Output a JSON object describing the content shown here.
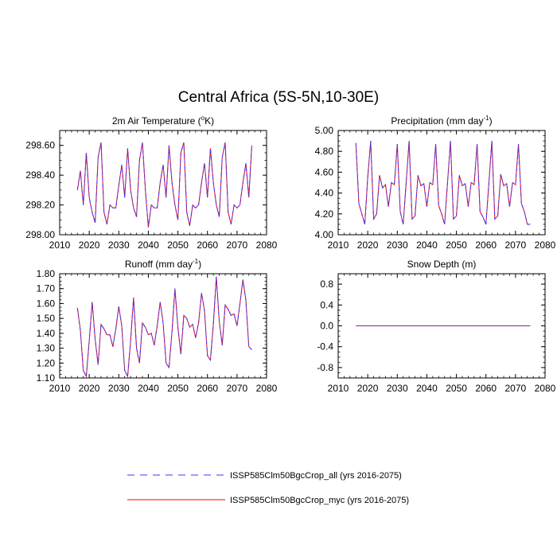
{
  "title": "Central Africa (5S-5N,10-30E)",
  "colors": {
    "series_all": "#3a3aff",
    "series_myc": "#ff0000",
    "axis": "#000000"
  },
  "legend": [
    {
      "label": "ISSP585Clm50BgcCrop_all (yrs 2016-2075)",
      "color": "#3a3aff",
      "style": "dashed"
    },
    {
      "label": "ISSP585Clm50BgcCrop_myc (yrs 2016-2075)",
      "color": "#ff0000",
      "style": "solid"
    }
  ],
  "chart_data": [
    {
      "type": "line",
      "title_main": "2m Air Temperature (",
      "title_sup": "o",
      "title_rest": "K)",
      "x": [
        2016,
        2017,
        2018,
        2019,
        2020,
        2021,
        2022,
        2023,
        2024,
        2025,
        2026,
        2027,
        2028,
        2029,
        2030,
        2031,
        2032,
        2033,
        2034,
        2035,
        2036,
        2037,
        2038,
        2039,
        2040,
        2041,
        2042,
        2043,
        2044,
        2045,
        2046,
        2047,
        2048,
        2049,
        2050,
        2051,
        2052,
        2053,
        2054,
        2055,
        2056,
        2057,
        2058,
        2059,
        2060,
        2061,
        2062,
        2063,
        2064,
        2065,
        2066,
        2067,
        2068,
        2069,
        2070,
        2071,
        2072,
        2073,
        2074,
        2075
      ],
      "series": [
        {
          "name": "ISSP585Clm50BgcCrop_all (yrs 2016-2075)",
          "values": [
            298.3,
            298.43,
            298.2,
            298.55,
            298.25,
            298.15,
            298.08,
            298.52,
            298.62,
            298.15,
            298.07,
            298.2,
            298.18,
            298.18,
            298.33,
            298.47,
            298.25,
            298.58,
            298.3,
            298.18,
            298.12,
            298.5,
            298.62,
            298.3,
            298.05,
            298.2,
            298.18,
            298.18,
            298.35,
            298.47,
            298.25,
            298.6,
            298.35,
            298.2,
            298.1,
            298.55,
            298.62,
            298.15,
            298.06,
            298.2,
            298.18,
            298.2,
            298.35,
            298.48,
            298.25,
            298.58,
            298.35,
            298.2,
            298.12,
            298.52,
            298.62,
            298.15,
            298.07,
            298.2,
            298.18,
            298.2,
            298.35,
            298.48,
            298.25,
            298.6
          ]
        },
        {
          "name": "ISSP585Clm50BgcCrop_myc (yrs 2016-2075)",
          "values": [
            298.3,
            298.43,
            298.2,
            298.55,
            298.25,
            298.15,
            298.08,
            298.52,
            298.62,
            298.15,
            298.07,
            298.2,
            298.18,
            298.18,
            298.33,
            298.47,
            298.25,
            298.58,
            298.3,
            298.18,
            298.12,
            298.5,
            298.62,
            298.3,
            298.05,
            298.2,
            298.18,
            298.18,
            298.35,
            298.47,
            298.25,
            298.6,
            298.35,
            298.2,
            298.1,
            298.55,
            298.62,
            298.15,
            298.06,
            298.2,
            298.18,
            298.2,
            298.35,
            298.48,
            298.25,
            298.58,
            298.35,
            298.2,
            298.12,
            298.52,
            298.62,
            298.15,
            298.07,
            298.2,
            298.18,
            298.2,
            298.35,
            298.48,
            298.25,
            298.6
          ]
        }
      ],
      "xlim": [
        2010,
        2080
      ],
      "ylim": [
        298.0,
        298.7
      ],
      "xticks": [
        "2010",
        "2020",
        "2030",
        "2040",
        "2050",
        "2060",
        "2070",
        "2080"
      ],
      "yticks": [
        "298.00",
        "298.20",
        "298.40",
        "298.60"
      ]
    },
    {
      "type": "line",
      "title_main": "Precipitation (mm day",
      "title_sup": "-1",
      "title_rest": ")",
      "x": [
        2016,
        2017,
        2018,
        2019,
        2020,
        2021,
        2022,
        2023,
        2024,
        2025,
        2026,
        2027,
        2028,
        2029,
        2030,
        2031,
        2032,
        2033,
        2034,
        2035,
        2036,
        2037,
        2038,
        2039,
        2040,
        2041,
        2042,
        2043,
        2044,
        2045,
        2046,
        2047,
        2048,
        2049,
        2050,
        2051,
        2052,
        2053,
        2054,
        2055,
        2056,
        2057,
        2058,
        2059,
        2060,
        2061,
        2062,
        2063,
        2064,
        2065,
        2066,
        2067,
        2068,
        2069,
        2070,
        2071,
        2072,
        2073,
        2074,
        2075
      ],
      "series": [
        {
          "name": "ISSP585Clm50BgcCrop_all (yrs 2016-2075)",
          "values": [
            4.88,
            4.3,
            4.2,
            4.1,
            4.55,
            4.9,
            4.15,
            4.2,
            4.57,
            4.45,
            4.48,
            4.27,
            4.5,
            4.48,
            4.87,
            4.22,
            4.1,
            4.5,
            4.9,
            4.15,
            4.18,
            4.57,
            4.47,
            4.49,
            4.27,
            4.5,
            4.48,
            4.87,
            4.28,
            4.2,
            4.1,
            4.5,
            4.9,
            4.15,
            4.18,
            4.57,
            4.47,
            4.49,
            4.27,
            4.5,
            4.48,
            4.87,
            4.22,
            4.17,
            4.1,
            4.5,
            4.9,
            4.15,
            4.18,
            4.58,
            4.47,
            4.49,
            4.27,
            4.5,
            4.48,
            4.87,
            4.3,
            4.22,
            4.1,
            4.1
          ]
        },
        {
          "name": "ISSP585Clm50BgcCrop_myc (yrs 2016-2075)",
          "values": [
            4.88,
            4.3,
            4.2,
            4.1,
            4.55,
            4.9,
            4.15,
            4.2,
            4.57,
            4.45,
            4.48,
            4.27,
            4.5,
            4.48,
            4.87,
            4.22,
            4.1,
            4.5,
            4.9,
            4.15,
            4.18,
            4.57,
            4.47,
            4.49,
            4.27,
            4.5,
            4.48,
            4.87,
            4.28,
            4.2,
            4.1,
            4.5,
            4.9,
            4.15,
            4.18,
            4.57,
            4.47,
            4.49,
            4.27,
            4.5,
            4.48,
            4.87,
            4.22,
            4.17,
            4.1,
            4.5,
            4.9,
            4.15,
            4.18,
            4.58,
            4.47,
            4.49,
            4.27,
            4.5,
            4.48,
            4.87,
            4.3,
            4.22,
            4.1,
            4.1
          ]
        }
      ],
      "xlim": [
        2010,
        2080
      ],
      "ylim": [
        4.0,
        5.0
      ],
      "xticks": [
        "2010",
        "2020",
        "2030",
        "2040",
        "2050",
        "2060",
        "2070",
        "2080"
      ],
      "yticks": [
        "4.00",
        "4.20",
        "4.40",
        "4.60",
        "4.80",
        "5.00"
      ]
    },
    {
      "type": "line",
      "title_main": "Runoff (mm day",
      "title_sup": "-1",
      "title_rest": ")",
      "x": [
        2016,
        2017,
        2018,
        2019,
        2020,
        2021,
        2022,
        2023,
        2024,
        2025,
        2026,
        2027,
        2028,
        2029,
        2030,
        2031,
        2032,
        2033,
        2034,
        2035,
        2036,
        2037,
        2038,
        2039,
        2040,
        2041,
        2042,
        2043,
        2044,
        2045,
        2046,
        2047,
        2048,
        2049,
        2050,
        2051,
        2052,
        2053,
        2054,
        2055,
        2056,
        2057,
        2058,
        2059,
        2060,
        2061,
        2062,
        2063,
        2064,
        2065,
        2066,
        2067,
        2068,
        2069,
        2070,
        2071,
        2072,
        2073,
        2074,
        2075
      ],
      "series": [
        {
          "name": "ISSP585Clm50BgcCrop_all (yrs 2016-2075)",
          "values": [
            1.57,
            1.42,
            1.15,
            1.11,
            1.35,
            1.61,
            1.36,
            1.19,
            1.46,
            1.43,
            1.39,
            1.39,
            1.31,
            1.43,
            1.58,
            1.45,
            1.15,
            1.11,
            1.35,
            1.64,
            1.3,
            1.2,
            1.47,
            1.44,
            1.39,
            1.4,
            1.32,
            1.45,
            1.61,
            1.47,
            1.2,
            1.17,
            1.41,
            1.7,
            1.44,
            1.26,
            1.52,
            1.5,
            1.44,
            1.46,
            1.37,
            1.47,
            1.67,
            1.55,
            1.25,
            1.22,
            1.46,
            1.78,
            1.48,
            1.32,
            1.59,
            1.56,
            1.52,
            1.53,
            1.45,
            1.6,
            1.76,
            1.62,
            1.31,
            1.29
          ]
        },
        {
          "name": "ISSP585Clm50BgcCrop_myc (yrs 2016-2075)",
          "values": [
            1.57,
            1.42,
            1.15,
            1.11,
            1.35,
            1.61,
            1.36,
            1.19,
            1.46,
            1.43,
            1.39,
            1.39,
            1.31,
            1.43,
            1.58,
            1.45,
            1.15,
            1.11,
            1.35,
            1.64,
            1.3,
            1.2,
            1.47,
            1.44,
            1.39,
            1.4,
            1.32,
            1.45,
            1.61,
            1.47,
            1.2,
            1.17,
            1.41,
            1.7,
            1.44,
            1.26,
            1.52,
            1.5,
            1.44,
            1.46,
            1.37,
            1.47,
            1.67,
            1.55,
            1.25,
            1.22,
            1.46,
            1.78,
            1.48,
            1.32,
            1.59,
            1.56,
            1.52,
            1.53,
            1.45,
            1.6,
            1.76,
            1.62,
            1.31,
            1.29
          ]
        }
      ],
      "xlim": [
        2010,
        2080
      ],
      "ylim": [
        1.1,
        1.8
      ],
      "xticks": [
        "2010",
        "2020",
        "2030",
        "2040",
        "2050",
        "2060",
        "2070",
        "2080"
      ],
      "yticks": [
        "1.10",
        "1.20",
        "1.30",
        "1.40",
        "1.50",
        "1.60",
        "1.70",
        "1.80"
      ]
    },
    {
      "type": "line",
      "title_main": "Snow Depth (m)",
      "title_sup": "",
      "title_rest": "",
      "x": [
        2016,
        2075
      ],
      "series": [
        {
          "name": "ISSP585Clm50BgcCrop_all (yrs 2016-2075)",
          "values": [
            0.0,
            0.0
          ]
        },
        {
          "name": "ISSP585Clm50BgcCrop_myc (yrs 2016-2075)",
          "values": [
            0.0,
            0.0
          ]
        }
      ],
      "xlim": [
        2010,
        2080
      ],
      "ylim": [
        -1.0,
        1.0
      ],
      "xticks": [
        "2010",
        "2020",
        "2030",
        "2040",
        "2050",
        "2060",
        "2070",
        "2080"
      ],
      "yticks": [
        "-0.8",
        "-0.4",
        "0.0",
        "0.4",
        "0.8"
      ]
    }
  ]
}
